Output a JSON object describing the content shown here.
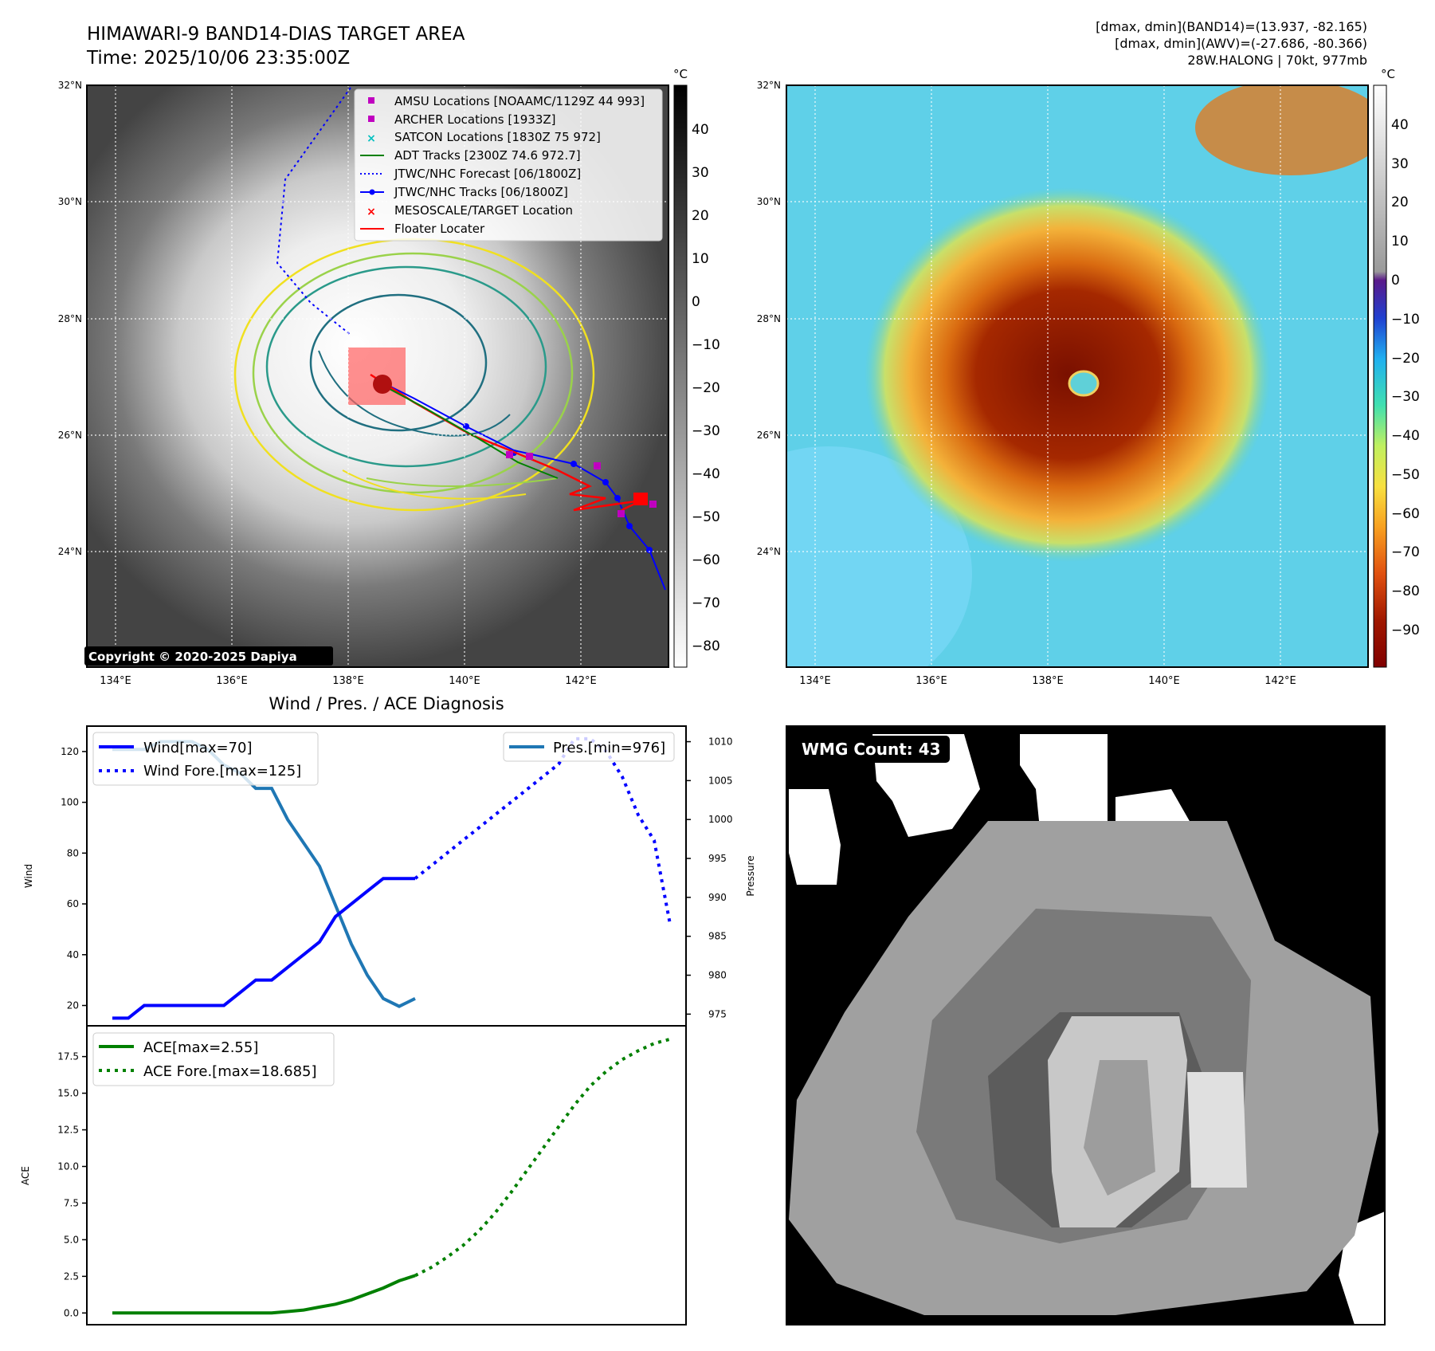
{
  "header": {
    "title_line1": "HIMAWARI-9 BAND14-DIAS TARGET AREA",
    "title_line2": "Time: 2025/10/06 23:35:00Z",
    "stats_line1": "[dmax, dmin](BAND14)=(13.937, -82.165)",
    "stats_line2": "[dmax, dmin](AWV)=(-27.686, -80.366)",
    "stats_line3": "28W.HALONG | 70kt, 977mb"
  },
  "ir_panel": {
    "lat_labels": [
      "32°N",
      "30°N",
      "28°N",
      "26°N",
      "24°N"
    ],
    "lon_labels": [
      "134°E",
      "136°E",
      "138°E",
      "140°E",
      "142°E"
    ],
    "copyright": "Copyright © 2020-2025 Dapiya",
    "colorbar_unit": "°C",
    "colorbar_ticks": [
      "40",
      "30",
      "20",
      "10",
      "0",
      "−10",
      "−20",
      "−30",
      "−40",
      "−50",
      "−60",
      "−70",
      "−80"
    ],
    "legend": [
      {
        "label": "AMSU Locations [NOAAMC/1129Z 44 993]",
        "color": "#c000c0",
        "marker": "square"
      },
      {
        "label": "ARCHER Locations [1933Z]",
        "color": "#c000c0",
        "marker": "square"
      },
      {
        "label": "SATCON Locations [1830Z 75 972]",
        "color": "#00c0c0",
        "marker": "x"
      },
      {
        "label": "ADT Tracks [2300Z 74.6 972.7]",
        "color": "#008000",
        "marker": "line"
      },
      {
        "label": "JTWC/NHC Forecast [06/1800Z]",
        "color": "#0000ff",
        "marker": "dotted"
      },
      {
        "label": "JTWC/NHC Tracks [06/1800Z]",
        "color": "#0000ff",
        "marker": "line-dot"
      },
      {
        "label": "MESOSCALE/TARGET Location",
        "color": "#ff0000",
        "marker": "x"
      },
      {
        "label": "Floater Locater",
        "color": "#ff0000",
        "marker": "line"
      }
    ]
  },
  "wv_panel": {
    "lat_labels": [
      "32°N",
      "30°N",
      "28°N",
      "26°N",
      "24°N"
    ],
    "lon_labels": [
      "134°E",
      "136°E",
      "138°E",
      "140°E",
      "142°E"
    ],
    "colorbar_unit": "°C",
    "colorbar_ticks": [
      "40",
      "30",
      "20",
      "10",
      "0",
      "−10",
      "−20",
      "−30",
      "−40",
      "−50",
      "−60",
      "−70",
      "−80",
      "−90"
    ]
  },
  "diagnosis": {
    "title": "Wind / Pres. / ACE Diagnosis",
    "wind_ylabel": "Wind",
    "pres_ylabel": "Pressure",
    "ace_ylabel": "ACE",
    "legend_wind": "Wind[max=70]",
    "legend_wind_fore": "Wind Fore.[max=125]",
    "legend_pres": "Pres.[min=976]",
    "legend_ace": "ACE[max=2.55]",
    "legend_ace_fore": "ACE Fore.[max=18.685]"
  },
  "wmg_panel": {
    "label": "WMG Count: 43"
  },
  "colors": {
    "wind": "#0000ff",
    "pressure": "#1f77b4",
    "ace": "#008000",
    "track_red": "#ff0000"
  },
  "chart_data": [
    {
      "type": "line",
      "name": "wind",
      "ylim": [
        12,
        130
      ],
      "yticks": [
        20,
        40,
        60,
        80,
        100,
        120
      ],
      "series": [
        {
          "name": "Wind[max=70]",
          "x": [
            0,
            1,
            2,
            3,
            4,
            5,
            6,
            7,
            8,
            9,
            10,
            11,
            12,
            13,
            14,
            15,
            16,
            17,
            18,
            19
          ],
          "values": [
            15,
            15,
            20,
            20,
            20,
            20,
            20,
            20,
            25,
            30,
            30,
            35,
            40,
            45,
            55,
            60,
            65,
            70,
            70,
            70
          ]
        },
        {
          "name": "Wind Fore.[max=125]",
          "x": [
            19,
            20,
            21,
            22,
            23,
            24,
            25,
            26,
            27,
            28,
            29,
            30,
            31,
            32,
            33,
            34,
            35
          ],
          "values": [
            70,
            75,
            80,
            85,
            90,
            95,
            100,
            105,
            110,
            115,
            125,
            125,
            120,
            110,
            95,
            85,
            52
          ]
        }
      ]
    },
    {
      "type": "line",
      "name": "pressure",
      "ylim": [
        973.5,
        1012
      ],
      "yticks": [
        975,
        980,
        985,
        990,
        995,
        1000,
        1005,
        1010
      ],
      "series": [
        {
          "name": "Pres.[min=976]",
          "x": [
            0,
            1,
            2,
            3,
            4,
            5,
            6,
            7,
            8,
            9,
            10,
            11,
            12,
            13,
            14,
            15,
            16,
            17,
            18,
            19
          ],
          "values": [
            1009,
            1009,
            1009,
            1010,
            1010,
            1010,
            1009,
            1007,
            1006,
            1004,
            1004,
            1000,
            997,
            994,
            989,
            984,
            980,
            977,
            976,
            977
          ]
        }
      ]
    },
    {
      "type": "line",
      "name": "ace",
      "ylim": [
        -0.8,
        19.6
      ],
      "yticks": [
        0.0,
        2.5,
        5.0,
        7.5,
        10.0,
        12.5,
        15.0,
        17.5
      ],
      "series": [
        {
          "name": "ACE[max=2.55]",
          "x": [
            0,
            1,
            2,
            3,
            4,
            5,
            6,
            7,
            8,
            9,
            10,
            11,
            12,
            13,
            14,
            15,
            16,
            17,
            18,
            19
          ],
          "values": [
            0,
            0,
            0,
            0,
            0,
            0,
            0,
            0,
            0,
            0,
            0,
            0.1,
            0.2,
            0.4,
            0.6,
            0.9,
            1.3,
            1.7,
            2.2,
            2.55
          ]
        },
        {
          "name": "ACE Fore.[max=18.685]",
          "x": [
            19,
            20,
            21,
            22,
            23,
            24,
            25,
            26,
            27,
            28,
            29,
            30,
            31,
            32,
            33,
            34,
            35
          ],
          "values": [
            2.55,
            3.1,
            3.8,
            4.6,
            5.6,
            6.8,
            8.2,
            9.7,
            11.2,
            12.7,
            14.2,
            15.5,
            16.5,
            17.3,
            17.9,
            18.4,
            18.685
          ]
        }
      ]
    }
  ]
}
